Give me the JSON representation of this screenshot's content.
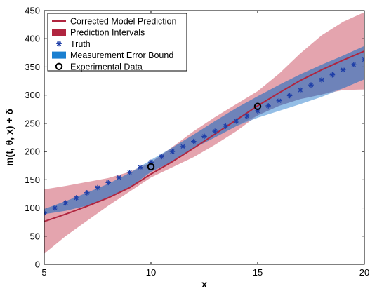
{
  "chart_data": {
    "type": "line",
    "title": "",
    "xlabel": "x",
    "ylabel": "m(t, θ, x) + δ",
    "xlim": [
      5,
      20
    ],
    "ylim": [
      0,
      450
    ],
    "xticks": [
      5,
      10,
      15,
      20
    ],
    "yticks": [
      0,
      50,
      100,
      150,
      200,
      250,
      300,
      350,
      400,
      450
    ],
    "legend_position": "top-left",
    "grid": false,
    "colors": {
      "prediction_line": "#b0253f",
      "prediction_interval": "#d9818f",
      "measurement_bound": "#5b9bd8",
      "truth": "#1f3fa8",
      "experimental": "#000000"
    },
    "legend": [
      {
        "label": "Corrected Model Prediction",
        "kind": "line"
      },
      {
        "label": "Prediction Intervals",
        "kind": "patch-red"
      },
      {
        "label": "Truth",
        "kind": "star"
      },
      {
        "label": "Measurement Error Bound",
        "kind": "patch-blue"
      },
      {
        "label": "Experimental Data",
        "kind": "circle"
      }
    ],
    "series": [
      {
        "name": "Corrected Model Prediction",
        "x": [
          5,
          6,
          7,
          8,
          9,
          10,
          11,
          12,
          13,
          14,
          15,
          16,
          17,
          18,
          19,
          20
        ],
        "y": [
          76,
          89,
          103,
          118,
          136,
          160,
          182,
          206,
          231,
          256,
          281,
          304,
          326,
          345,
          362,
          378
        ]
      },
      {
        "name": "Prediction Intervals",
        "x": [
          5,
          6,
          7,
          8,
          9,
          10,
          11,
          12,
          13,
          14,
          15,
          16,
          17,
          18,
          19,
          20
        ],
        "lower": [
          19,
          50,
          77,
          104,
          129,
          154,
          172,
          190,
          212,
          236,
          264,
          281,
          293,
          301,
          309,
          310
        ],
        "upper": [
          133,
          139,
          146,
          153,
          164,
          181,
          208,
          236,
          261,
          284,
          307,
          338,
          374,
          406,
          430,
          447
        ]
      },
      {
        "name": "Measurement Error Bound",
        "x": [
          5,
          6,
          7,
          8,
          9,
          10,
          11,
          12,
          13,
          14,
          15,
          16,
          17,
          18,
          19,
          20
        ],
        "lower": [
          89,
          95,
          104,
          118,
          136,
          164,
          182,
          206,
          225,
          245,
          260,
          272,
          284,
          297,
          312,
          328
        ],
        "upper": [
          98,
          112,
          127,
          143,
          162,
          185,
          207,
          230,
          254,
          277,
          298,
          318,
          337,
          354,
          370,
          387
        ]
      },
      {
        "name": "Truth",
        "x": [
          5,
          5.5,
          6,
          6.5,
          7,
          7.5,
          8,
          8.5,
          9,
          9.5,
          10,
          10.5,
          11,
          11.5,
          12,
          12.5,
          13,
          13.5,
          14,
          14.5,
          15,
          15.5,
          16,
          16.5,
          17,
          17.5,
          18,
          18.5,
          19,
          19.5,
          20
        ],
        "y": [
          91,
          100,
          109,
          118,
          127,
          136,
          145,
          154,
          163,
          172,
          181,
          191,
          200,
          209,
          218,
          227,
          236,
          245,
          254,
          263,
          272,
          281,
          290,
          299,
          309,
          318,
          327,
          336,
          345,
          354,
          363
        ]
      },
      {
        "name": "Experimental Data",
        "x": [
          10,
          15
        ],
        "y": [
          173,
          280
        ]
      }
    ]
  }
}
